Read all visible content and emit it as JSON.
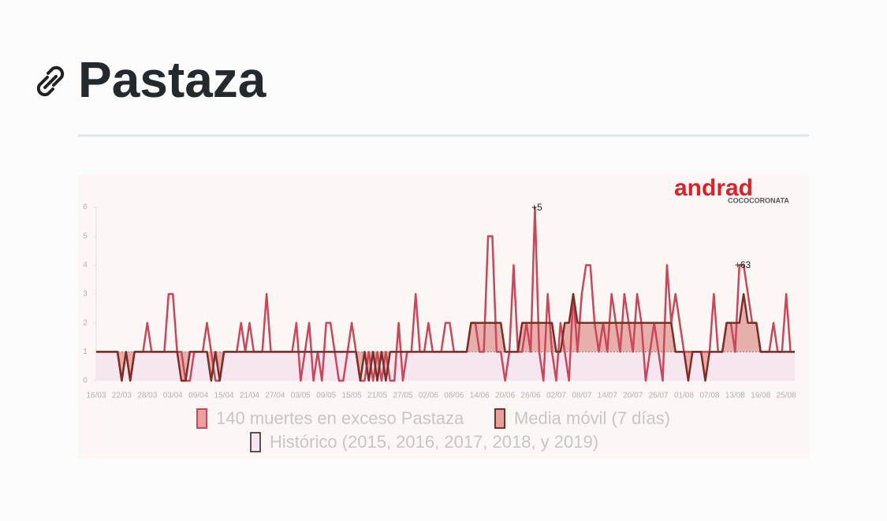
{
  "header": {
    "title": "Pastaza"
  },
  "chart_data": {
    "type": "line",
    "logo": "andrad",
    "watermark": "COCOCORONATA",
    "annotations": [
      "+5",
      "+63"
    ],
    "categories": [
      "16/03",
      null,
      null,
      null,
      null,
      null,
      "22/03",
      null,
      null,
      null,
      null,
      null,
      "28/03",
      null,
      null,
      null,
      null,
      null,
      "03/04",
      null,
      null,
      null,
      null,
      null,
      "09/04",
      null,
      null,
      null,
      null,
      null,
      "15/04",
      null,
      null,
      null,
      null,
      null,
      "21/04",
      null,
      null,
      null,
      null,
      null,
      "27/04",
      null,
      null,
      null,
      null,
      null,
      "03/05",
      null,
      null,
      null,
      null,
      null,
      "09/05",
      null,
      null,
      null,
      null,
      null,
      "15/05",
      null,
      null,
      null,
      null,
      null,
      "21/05",
      null,
      null,
      null,
      null,
      null,
      "27/05",
      null,
      null,
      null,
      null,
      null,
      "02/06",
      null,
      null,
      null,
      null,
      null,
      "08/06",
      null,
      null,
      null,
      null,
      null,
      "14/06",
      null,
      null,
      null,
      null,
      null,
      "20/06",
      null,
      null,
      null,
      null,
      null,
      "26/06",
      null,
      null,
      null,
      null,
      null,
      "02/07",
      null,
      null,
      null,
      null,
      null,
      "08/07",
      null,
      null,
      null,
      null,
      null,
      "14/07",
      null,
      null,
      null,
      null,
      null,
      "20/07",
      null,
      null,
      null,
      null,
      null,
      "26/07",
      null,
      null,
      null,
      null,
      null,
      "01/08",
      null,
      null,
      null,
      null,
      null,
      "07/08",
      null,
      null,
      null,
      null,
      null,
      "13/08",
      null,
      null,
      null,
      null,
      null,
      "19/08",
      null,
      null,
      null,
      null,
      null,
      "25/08",
      null,
      null
    ],
    "series": [
      {
        "name": "140 muertes en exceso Pastaza",
        "color": "#c9475a",
        "fill": "#ee9f9f",
        "values": [
          1,
          1,
          1,
          1,
          1,
          1,
          0,
          1,
          0,
          1,
          1,
          1,
          2,
          1,
          1,
          1,
          1,
          3,
          3,
          1,
          1,
          0,
          0,
          1,
          1,
          1,
          2,
          1,
          0,
          0,
          1,
          1,
          1,
          1,
          2,
          1,
          2,
          1,
          1,
          1,
          3,
          1,
          1,
          1,
          1,
          1,
          1,
          2,
          0,
          1,
          2,
          0,
          1,
          0,
          2,
          2,
          1,
          0,
          0,
          1,
          2,
          1,
          0,
          0,
          1,
          0,
          1,
          0,
          1,
          0,
          0,
          2,
          0,
          1,
          1,
          3,
          1,
          1,
          2,
          1,
          1,
          1,
          2,
          2,
          1,
          1,
          1,
          1,
          2,
          2,
          1,
          1,
          5,
          5,
          1,
          1,
          0,
          1,
          4,
          1,
          1,
          2,
          1,
          6,
          1,
          0,
          3,
          1,
          0,
          2,
          1,
          0,
          3,
          1,
          3,
          4,
          4,
          2,
          1,
          2,
          1,
          3,
          2,
          1,
          3,
          2,
          1,
          3,
          2,
          0,
          1,
          2,
          1,
          0,
          4,
          2,
          3,
          2,
          1,
          1,
          1,
          1,
          1,
          1,
          1,
          3,
          1,
          1,
          2,
          2,
          1,
          4,
          4,
          3,
          2,
          2,
          1,
          1,
          1,
          2,
          1,
          1,
          3,
          1,
          1
        ]
      },
      {
        "name": "Media móvil (7 días)",
        "color": "#7b2d26",
        "fill": "#e3a29c",
        "values": [
          1,
          1,
          1,
          1,
          1,
          1,
          0,
          1,
          0,
          1,
          1,
          1,
          1,
          1,
          1,
          1,
          1,
          1,
          1,
          1,
          0,
          0,
          1,
          1,
          1,
          1,
          1,
          0,
          1,
          0,
          1,
          1,
          1,
          1,
          1,
          1,
          1,
          1,
          1,
          1,
          1,
          1,
          1,
          1,
          1,
          1,
          1,
          1,
          1,
          1,
          1,
          1,
          1,
          1,
          1,
          1,
          1,
          1,
          1,
          1,
          1,
          1,
          0,
          1,
          0,
          1,
          0,
          1,
          0,
          1,
          1,
          1,
          1,
          1,
          1,
          1,
          1,
          1,
          1,
          1,
          1,
          1,
          1,
          1,
          1,
          1,
          1,
          1,
          2,
          2,
          2,
          2,
          2,
          2,
          2,
          2,
          1,
          1,
          1,
          1,
          2,
          2,
          2,
          2,
          2,
          2,
          2,
          2,
          1,
          1,
          2,
          2,
          3,
          2,
          2,
          2,
          2,
          2,
          2,
          2,
          2,
          2,
          2,
          2,
          2,
          2,
          2,
          2,
          2,
          2,
          2,
          2,
          2,
          2,
          2,
          2,
          1,
          1,
          1,
          0,
          1,
          1,
          1,
          0,
          1,
          1,
          1,
          1,
          2,
          2,
          2,
          2,
          3,
          2,
          2,
          2,
          1,
          1,
          1,
          1,
          1,
          1,
          1,
          1,
          1
        ]
      },
      {
        "name": "Histórico (2015, 2016, 2017, 2018, y 2019)",
        "color": "#888888",
        "fill": "#f6e6ef",
        "values": [
          1,
          1,
          1,
          1,
          1,
          1,
          1,
          1,
          1,
          1,
          1,
          1,
          1,
          1,
          1,
          1,
          1,
          1,
          1,
          1,
          1,
          1,
          1,
          1,
          1,
          1,
          1,
          1,
          1,
          1,
          1,
          1,
          1,
          1,
          1,
          1,
          1,
          1,
          1,
          1,
          1,
          1,
          1,
          1,
          1,
          1,
          1,
          1,
          1,
          1,
          1,
          1,
          1,
          1,
          1,
          1,
          1,
          1,
          1,
          1,
          1,
          1,
          1,
          1,
          1,
          1,
          1,
          1,
          1,
          1,
          1,
          1,
          1,
          1,
          1,
          1,
          1,
          1,
          1,
          1,
          1,
          1,
          1,
          1,
          1,
          1,
          1,
          1,
          1,
          1,
          1,
          1,
          1,
          1,
          1,
          1,
          1,
          1,
          1,
          1,
          1,
          1,
          1,
          1,
          1,
          1,
          1,
          1,
          1,
          1,
          1,
          1,
          1,
          1,
          1,
          1,
          1,
          1,
          1,
          1,
          1,
          1,
          1,
          1,
          1,
          1,
          1,
          1,
          1,
          1,
          1,
          1,
          1,
          1,
          1,
          1,
          1,
          1,
          1,
          1,
          1,
          1,
          1,
          1,
          1,
          1,
          1,
          1,
          1,
          1,
          1,
          1,
          1,
          1,
          1,
          1,
          1,
          1,
          1,
          1,
          1,
          1,
          1,
          1,
          1
        ]
      }
    ],
    "ylim": [
      0,
      6
    ],
    "yticks": [
      0,
      1,
      2,
      3,
      4,
      5,
      6
    ],
    "grid": false
  }
}
